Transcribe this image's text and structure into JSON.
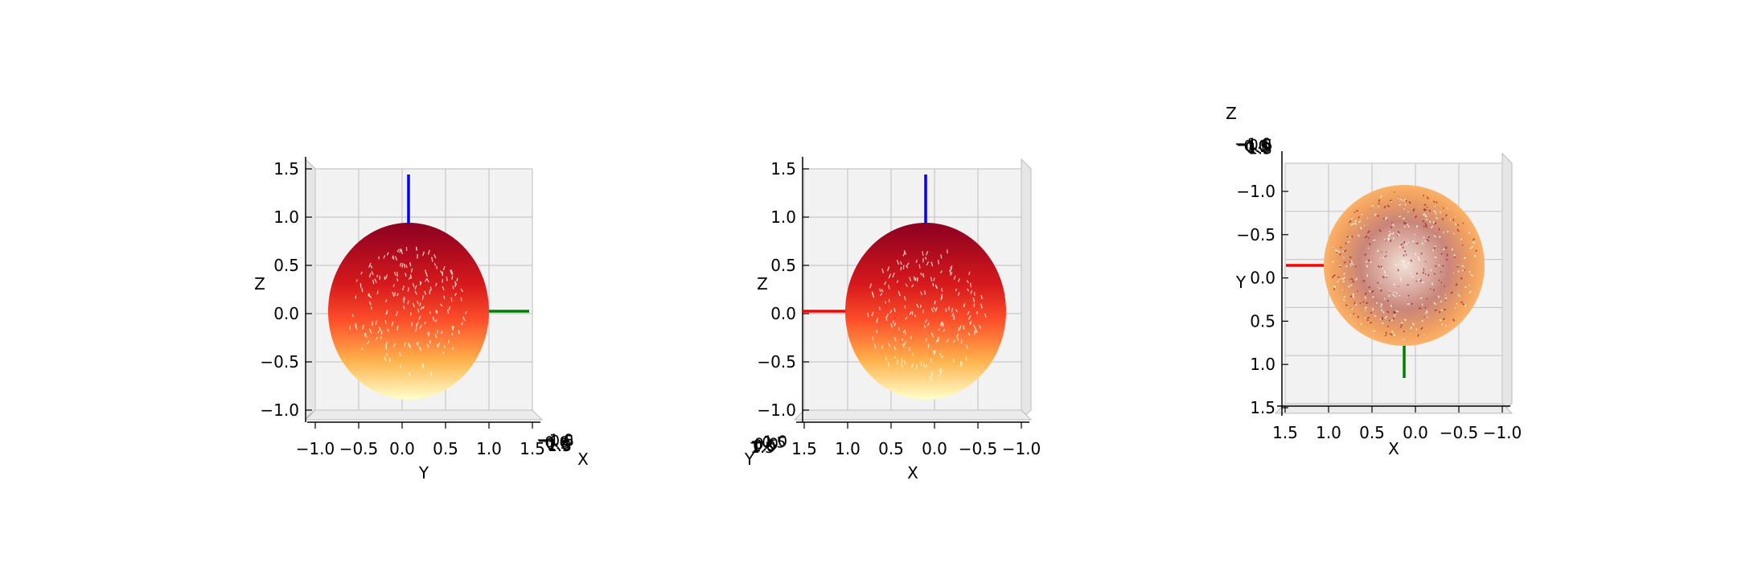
{
  "figure": {
    "background": "#ffffff"
  },
  "colors": {
    "pane_back": "#f2f2f2",
    "pane_side": "#e6e6e6",
    "pane_floor": "#ebebeb",
    "grid": "#c8c8c8",
    "axis_x": "#ff0000",
    "axis_y": "#008000",
    "axis_z": "#0000ff",
    "sphere_top": "#8b0021",
    "sphere_mid": "#fc4e2a",
    "sphere_low": "#feb24c",
    "sphere_bottom": "#ffffcc",
    "topview_fill": "#f5a35a"
  },
  "chart_data": [
    {
      "type": "surface3d",
      "view": "side view looking along +X",
      "colormap": "YlOrRd",
      "horizontal_axis": {
        "label": "Y",
        "ticks": [
          "−1.0",
          "−0.5",
          "0.0",
          "0.5",
          "1.0",
          "1.5"
        ],
        "range": [
          -1.0,
          1.5
        ]
      },
      "vertical_axis": {
        "label": "Z",
        "ticks": [
          "−1.0",
          "−0.5",
          "0.0",
          "0.5",
          "1.0",
          "1.5"
        ],
        "range": [
          -1.0,
          1.5
        ]
      },
      "depth_axis": {
        "label": "X",
        "ticks": [
          "−1.0",
          "−0.5",
          "0.0",
          "0.5",
          "1.0",
          "1.5"
        ]
      },
      "sphere": {
        "center": [
          0,
          0,
          0
        ],
        "radius": 1.0
      },
      "axis_lines": [
        {
          "name": "x",
          "color": "#ff0000",
          "from": [
            0,
            0,
            0
          ],
          "to": [
            1.5,
            0,
            0
          ]
        },
        {
          "name": "y",
          "color": "#008000",
          "from": [
            0,
            0,
            0
          ],
          "to": [
            0,
            1.5,
            0
          ]
        },
        {
          "name": "z",
          "color": "#0000ff",
          "from": [
            0,
            0,
            0
          ],
          "to": [
            0,
            0,
            1.5
          ]
        }
      ]
    },
    {
      "type": "surface3d",
      "view": "side view looking along −Y",
      "colormap": "YlOrRd",
      "horizontal_axis": {
        "label": "X",
        "ticks": [
          "1.5",
          "1.0",
          "0.5",
          "0.0",
          "−0.5",
          "−1.0"
        ],
        "range": [
          1.5,
          -1.0
        ]
      },
      "vertical_axis": {
        "label": "Z",
        "ticks": [
          "−1.0",
          "−0.5",
          "0.0",
          "0.5",
          "1.0",
          "1.5"
        ],
        "range": [
          -1.0,
          1.5
        ]
      },
      "depth_axis": {
        "label": "Y",
        "ticks": [
          "−1.0",
          "−0.5",
          "0.0",
          "0.5",
          "1.0",
          "1.5"
        ]
      },
      "sphere": {
        "center": [
          0,
          0,
          0
        ],
        "radius": 1.0
      },
      "axis_lines": [
        {
          "name": "x",
          "color": "#ff0000",
          "from": [
            0,
            0,
            0
          ],
          "to": [
            1.5,
            0,
            0
          ]
        },
        {
          "name": "y",
          "color": "#008000",
          "from": [
            0,
            0,
            0
          ],
          "to": [
            0,
            1.5,
            0
          ]
        },
        {
          "name": "z",
          "color": "#0000ff",
          "from": [
            0,
            0,
            0
          ],
          "to": [
            0,
            0,
            1.5
          ]
        }
      ]
    },
    {
      "type": "surface3d",
      "view": "top view looking along −Z",
      "colormap": "YlOrRd",
      "horizontal_axis": {
        "label": "X",
        "ticks": [
          "1.5",
          "1.0",
          "0.5",
          "0.0",
          "−0.5",
          "−1.0"
        ],
        "range": [
          1.5,
          -1.0
        ]
      },
      "vertical_axis": {
        "label": "Y",
        "ticks": [
          "−1.0",
          "−0.5",
          "0.0",
          "0.5",
          "1.0",
          "1.5"
        ],
        "range": [
          -1.0,
          1.5
        ]
      },
      "depth_axis": {
        "label": "Z",
        "ticks": [
          "−1.0",
          "−0.5",
          "0.0",
          "0.5",
          "1.0",
          "1.5"
        ]
      },
      "sphere": {
        "center": [
          0,
          0,
          0
        ],
        "radius": 1.0
      },
      "axis_lines": [
        {
          "name": "x",
          "color": "#ff0000",
          "from": [
            0,
            0,
            0
          ],
          "to": [
            1.5,
            0,
            0
          ]
        },
        {
          "name": "y",
          "color": "#008000",
          "from": [
            0,
            0,
            0
          ],
          "to": [
            0,
            1.5,
            0
          ]
        },
        {
          "name": "z",
          "color": "#0000ff",
          "from": [
            0,
            0,
            0
          ],
          "to": [
            0,
            0,
            1.5
          ]
        }
      ]
    }
  ]
}
